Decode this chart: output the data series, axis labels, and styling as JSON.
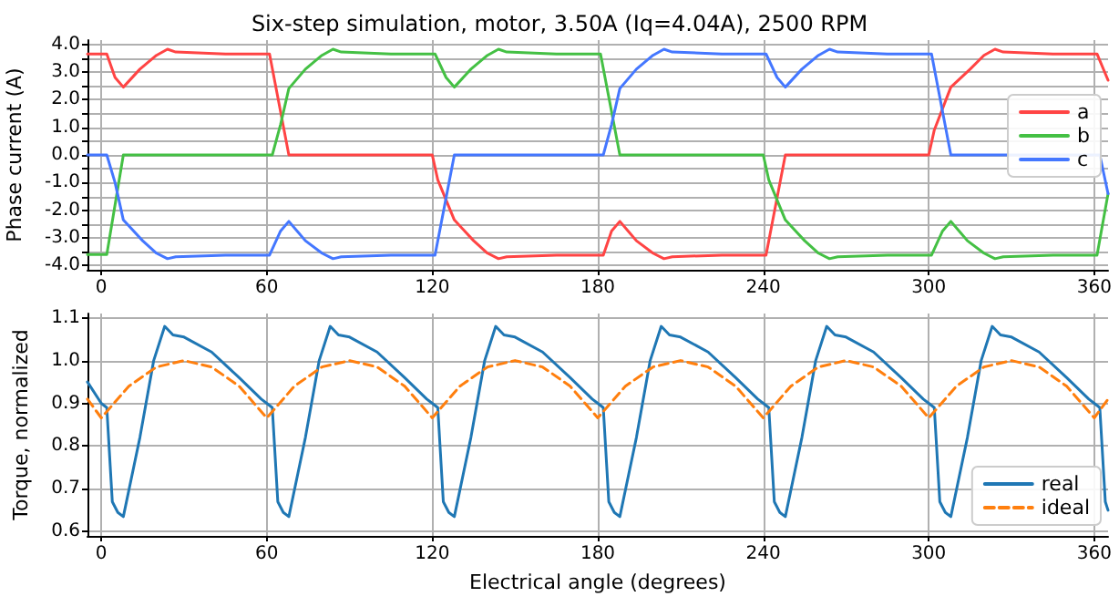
{
  "chart_data": [
    {
      "type": "line",
      "title": "Six-step simulation, motor, 3.50A (Iq=4.04A), 2500 RPM",
      "ylabel": "Phase current (A)",
      "xlim": [
        -5,
        365
      ],
      "xticks": [
        0,
        60,
        120,
        180,
        240,
        300,
        360
      ],
      "ylim": [
        -4.15,
        4.15
      ],
      "yticks": [
        {
          "value": -4,
          "label": "-4.0"
        },
        {
          "value": -3.5,
          "label": null
        },
        {
          "value": -3,
          "label": "-3.0"
        },
        {
          "value": -2.5,
          "label": null
        },
        {
          "value": -2,
          "label": "-2.0"
        },
        {
          "value": -1.5,
          "label": null
        },
        {
          "value": -1,
          "label": "-1.0"
        },
        {
          "value": -0.5,
          "label": null
        },
        {
          "value": 0,
          "label": "0.0"
        },
        {
          "value": 0.5,
          "label": null
        },
        {
          "value": 1,
          "label": "1.0"
        },
        {
          "value": 1.5,
          "label": null
        },
        {
          "value": 2,
          "label": "2.0"
        },
        {
          "value": 2.5,
          "label": null
        },
        {
          "value": 3,
          "label": "3.0"
        },
        {
          "value": 3.5,
          "label": null
        },
        {
          "value": 4,
          "label": "4.0"
        }
      ],
      "grid": true,
      "legend": "top right",
      "marker": "none",
      "line_style": "solid",
      "series": [
        {
          "name": "a",
          "color": "#ff4444",
          "x": [
            -5,
            0,
            2,
            5,
            8,
            14,
            20,
            24,
            27,
            45,
            61,
            68,
            120,
            122,
            128,
            135,
            140,
            144,
            147,
            165,
            182,
            185,
            188,
            194,
            200,
            204,
            207,
            225,
            241,
            248,
            300,
            302,
            308,
            315,
            320,
            324,
            327,
            345,
            361,
            365
          ],
          "values": [
            3.65,
            3.65,
            3.65,
            2.8,
            2.45,
            3.1,
            3.6,
            3.82,
            3.72,
            3.65,
            3.65,
            0,
            0,
            -0.9,
            -2.35,
            -3.1,
            -3.55,
            -3.75,
            -3.68,
            -3.62,
            -3.62,
            -2.75,
            -2.4,
            -3.1,
            -3.55,
            -3.75,
            -3.68,
            -3.62,
            -3.62,
            0,
            0,
            0.9,
            2.45,
            3.1,
            3.6,
            3.82,
            3.72,
            3.65,
            3.65,
            2.7
          ]
        },
        {
          "name": "b",
          "color": "#44c044",
          "x": [
            -5,
            2,
            8,
            62,
            65,
            68,
            74,
            80,
            84,
            87,
            105,
            121,
            125,
            128,
            134,
            140,
            144,
            147,
            165,
            181,
            188,
            240,
            242,
            248,
            255,
            260,
            264,
            267,
            285,
            301,
            305,
            308,
            314,
            320,
            324,
            327,
            345,
            361,
            365
          ],
          "values": [
            -3.6,
            -3.6,
            0,
            0,
            1.1,
            2.4,
            3.1,
            3.6,
            3.82,
            3.72,
            3.65,
            3.65,
            2.8,
            2.45,
            3.1,
            3.6,
            3.82,
            3.72,
            3.65,
            3.65,
            0,
            0,
            -0.9,
            -2.35,
            -3.1,
            -3.55,
            -3.75,
            -3.68,
            -3.62,
            -3.62,
            -2.75,
            -2.4,
            -3.1,
            -3.55,
            -3.75,
            -3.68,
            -3.62,
            -3.62,
            -1.4
          ]
        },
        {
          "name": "c",
          "color": "#4477ff",
          "x": [
            -5,
            2,
            5,
            8,
            15,
            20,
            24,
            27,
            45,
            61,
            65,
            68,
            74,
            80,
            84,
            87,
            105,
            121,
            128,
            182,
            185,
            188,
            194,
            200,
            204,
            207,
            225,
            241,
            245,
            248,
            254,
            260,
            264,
            267,
            285,
            301,
            308,
            362,
            365
          ],
          "values": [
            0,
            0,
            -1.0,
            -2.35,
            -3.1,
            -3.55,
            -3.75,
            -3.68,
            -3.62,
            -3.62,
            -2.75,
            -2.4,
            -3.1,
            -3.55,
            -3.75,
            -3.68,
            -3.62,
            -3.62,
            0,
            0,
            1.1,
            2.4,
            3.1,
            3.6,
            3.82,
            3.72,
            3.65,
            3.65,
            2.8,
            2.45,
            3.1,
            3.6,
            3.82,
            3.72,
            3.65,
            3.65,
            0,
            0,
            -1.4
          ]
        }
      ]
    },
    {
      "type": "line",
      "xlabel": "Electrical angle (degrees)",
      "ylabel": "Torque, normalized",
      "xlim": [
        -5,
        365
      ],
      "xticks": [
        0,
        60,
        120,
        180,
        240,
        300,
        360
      ],
      "ylim": [
        0.59,
        1.11
      ],
      "yticks": [
        0.6,
        0.7,
        0.8,
        0.9,
        {
          "value": 1,
          "label": "1.0"
        },
        1.1
      ],
      "grid": true,
      "legend": "bottom right",
      "marker": "none",
      "series": [
        {
          "name": "real",
          "color": "#1f77b4",
          "line_style": "solid",
          "x": [
            -5,
            0,
            2,
            4,
            6,
            8,
            14,
            19,
            23,
            26,
            30,
            40,
            50,
            58,
            60,
            62,
            64,
            66,
            68,
            74,
            79,
            83,
            86,
            90,
            100,
            110,
            118,
            120,
            122,
            124,
            126,
            128,
            134,
            139,
            143,
            146,
            150,
            160,
            170,
            178,
            180,
            182,
            184,
            186,
            188,
            194,
            199,
            203,
            206,
            210,
            220,
            230,
            238,
            240,
            242,
            244,
            246,
            248,
            254,
            259,
            263,
            266,
            270,
            280,
            290,
            298,
            300,
            302,
            304,
            306,
            308,
            314,
            319,
            323,
            326,
            330,
            340,
            350,
            358,
            360,
            362,
            364,
            365
          ],
          "values": [
            0.95,
            0.9,
            0.89,
            0.67,
            0.645,
            0.635,
            0.82,
            1.0,
            1.08,
            1.06,
            1.055,
            1.02,
            0.96,
            0.91,
            0.9,
            0.89,
            0.67,
            0.645,
            0.635,
            0.82,
            1.0,
            1.08,
            1.06,
            1.055,
            1.02,
            0.96,
            0.91,
            0.9,
            0.89,
            0.67,
            0.645,
            0.635,
            0.82,
            1.0,
            1.08,
            1.06,
            1.055,
            1.02,
            0.96,
            0.91,
            0.9,
            0.89,
            0.67,
            0.645,
            0.635,
            0.82,
            1.0,
            1.08,
            1.06,
            1.055,
            1.02,
            0.96,
            0.91,
            0.9,
            0.89,
            0.67,
            0.645,
            0.635,
            0.82,
            1.0,
            1.08,
            1.06,
            1.055,
            1.02,
            0.96,
            0.91,
            0.9,
            0.89,
            0.67,
            0.645,
            0.635,
            0.82,
            1.0,
            1.08,
            1.06,
            1.055,
            1.02,
            0.96,
            0.91,
            0.9,
            0.89,
            0.67,
            0.65
          ]
        },
        {
          "name": "ideal",
          "color": "#ff7f0e",
          "line_style": "dashed",
          "x": [
            -5,
            0,
            10,
            20,
            30,
            40,
            50,
            60,
            70,
            80,
            90,
            100,
            110,
            120,
            130,
            140,
            150,
            160,
            170,
            180,
            190,
            200,
            210,
            220,
            230,
            240,
            250,
            260,
            270,
            280,
            290,
            300,
            310,
            320,
            330,
            340,
            350,
            360,
            365
          ],
          "values": [
            0.91,
            0.866,
            0.94,
            0.985,
            1.0,
            0.985,
            0.94,
            0.866,
            0.94,
            0.985,
            1.0,
            0.985,
            0.94,
            0.866,
            0.94,
            0.985,
            1.0,
            0.985,
            0.94,
            0.866,
            0.94,
            0.985,
            1.0,
            0.985,
            0.94,
            0.866,
            0.94,
            0.985,
            1.0,
            0.985,
            0.94,
            0.866,
            0.94,
            0.985,
            1.0,
            0.985,
            0.94,
            0.866,
            0.91
          ]
        }
      ]
    }
  ]
}
